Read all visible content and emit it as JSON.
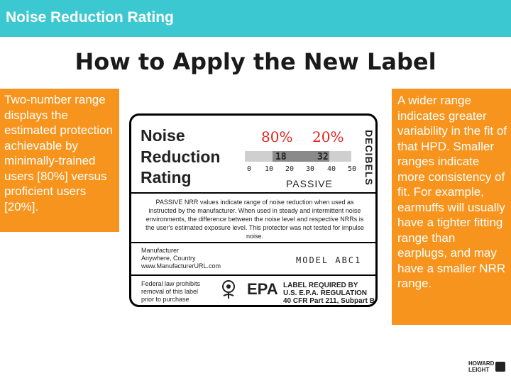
{
  "header": {
    "title": "Noise Reduction Rating"
  },
  "main": {
    "heading": "How to Apply the New Label"
  },
  "callouts": {
    "left": "Two-number range displays the estimated protection achievable by minimally-trained users [80%] versus proficient users [20%].",
    "right": "A wider range indicates greater variability in the fit of that HPD. Smaller ranges indicate more consistency of fit. For example, earmuffs will usually have a tighter fitting range than earplugs, and may have a smaller NRR range."
  },
  "label": {
    "title_line1": "Noise",
    "title_line2": "Reduction",
    "title_line3": "Rating",
    "pct_low_users": "80%",
    "pct_high_users": "20%",
    "decibels": "DECIBELS",
    "range_low": "18",
    "range_high": "32",
    "scale": [
      "0",
      "10",
      "20",
      "30",
      "40",
      "50"
    ],
    "passive_word": "PASSIVE",
    "passive_text": "PASSIVE NRR values indicate range of noise reduction when used as instructed by the manufacturer. When used in steady and intermittent noise environments, the difference between the noise level and respective NRRs is the user's estimated exposure level. This protector was not tested for impulse noise.",
    "mfr_line1": "Manufacturer",
    "mfr_line2": "Anywhere, Country",
    "mfr_line3": "www.ManufacturerURL.com",
    "model": "MODEL ABC1",
    "federal_line1": "Federal law prohibits",
    "federal_line2": "removal of this label",
    "federal_line3": "prior to purchase",
    "epa": "EPA",
    "req_line1": "LABEL REQUIRED BY",
    "req_line2": "U.S. E.P.A. REGULATION",
    "req_line3": "40 CFR Part 211, Subpart B"
  },
  "colors": {
    "topbar": "#3cc8d0",
    "callout": "#f7941d",
    "accent_red": "#e2231a"
  },
  "logo": {
    "line1": "HOWARD",
    "line2": "LEIGHT"
  }
}
